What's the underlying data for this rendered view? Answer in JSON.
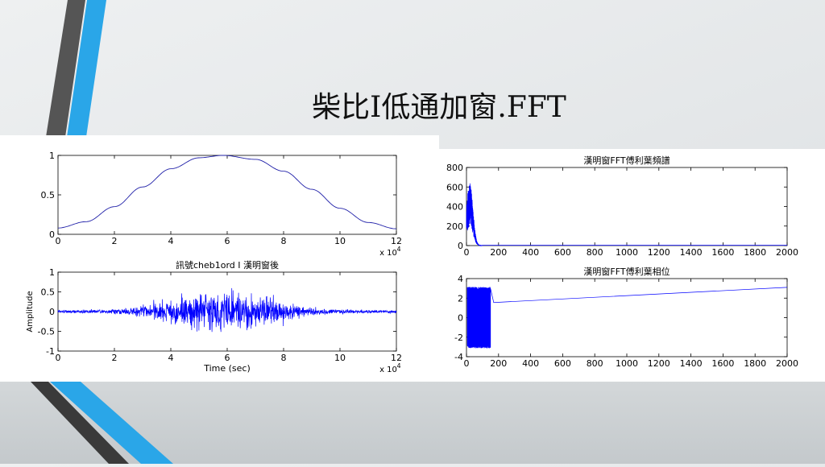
{
  "slide": {
    "title": "柴比I低通加窗.FFT",
    "colors": {
      "accent_blue": "#2aa6e8",
      "accent_dark": "#555555",
      "plot_blue": "#0000ff",
      "line_blue": "#1f1fa8"
    }
  },
  "chart_data": [
    {
      "type": "line",
      "title": "",
      "xlabel": "",
      "ylabel": "",
      "x_multiplier_label": "x 10",
      "x_multiplier_exp": "4",
      "xlim": [
        0,
        12
      ],
      "ylim": [
        0,
        1
      ],
      "xticks": [
        0,
        2,
        4,
        6,
        8,
        10,
        12
      ],
      "yticks": [
        0,
        0.5,
        1
      ],
      "series": [
        {
          "x": [
            0,
            1,
            2,
            3,
            4,
            5,
            5.85,
            7,
            8,
            9,
            10,
            11,
            12
          ],
          "y": [
            0.08,
            0.16,
            0.35,
            0.6,
            0.83,
            0.97,
            1.0,
            0.95,
            0.8,
            0.57,
            0.33,
            0.15,
            0.07
          ]
        }
      ],
      "grid": false
    },
    {
      "type": "line",
      "title": "訊號cheb1ord I 漢明窗後",
      "xlabel": "Time (sec)",
      "ylabel": "Amplitude",
      "x_multiplier_label": "x 10",
      "x_multiplier_exp": "4",
      "xlim": [
        0,
        12
      ],
      "ylim": [
        -1,
        1
      ],
      "xticks": [
        0,
        2,
        4,
        6,
        8,
        10,
        12
      ],
      "yticks": [
        -1,
        -0.5,
        0,
        0.5,
        1
      ],
      "envelope": {
        "center": 5.85,
        "peak_amplitude": 0.6,
        "noise_floor": 0.03
      },
      "grid": false
    },
    {
      "type": "line",
      "title": "漢明窗FFT傅利葉頻譜",
      "xlabel": "",
      "ylabel": "",
      "xlim": [
        0,
        2000
      ],
      "ylim": [
        0,
        800
      ],
      "xticks": [
        0,
        200,
        400,
        600,
        800,
        1000,
        1200,
        1400,
        1600,
        1800,
        2000
      ],
      "yticks": [
        0,
        200,
        400,
        600,
        800
      ],
      "spectrum": {
        "active_max_x": 100,
        "peak_x": 20,
        "peak_y": 650,
        "floor": 3
      },
      "grid": false
    },
    {
      "type": "line",
      "title": "漢明窗FFT傅利葉相位",
      "xlabel": "",
      "ylabel": "",
      "xlim": [
        0,
        2000
      ],
      "ylim": [
        -4,
        4
      ],
      "xticks": [
        0,
        200,
        400,
        600,
        800,
        1000,
        1200,
        1400,
        1600,
        1800,
        2000
      ],
      "yticks": [
        -4,
        -2,
        0,
        2,
        4
      ],
      "phase": {
        "wrap_end_x": 150,
        "wrap_amplitude": 3.14,
        "line": [
          [
            170,
            1.55
          ],
          [
            2000,
            3.1
          ]
        ]
      },
      "grid": false
    }
  ]
}
